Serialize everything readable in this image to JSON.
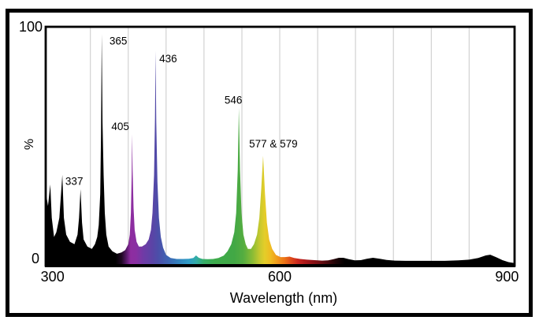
{
  "figure": {
    "xlabel": "Wavelength (nm)",
    "ylabel": "%",
    "y_tick_top": "100",
    "y_tick_bottom": "0"
  },
  "colors": {
    "background": "#ffffff",
    "frame": "#000000",
    "plot_border": "#000000",
    "gridline": "#c9c9c9",
    "text": "#000000"
  },
  "chart_data": {
    "type": "area",
    "title": "",
    "xlabel": "Wavelength (nm)",
    "ylabel": "%",
    "xlim": [
      291,
      910
    ],
    "ylim": [
      0,
      100
    ],
    "x_ticks": [
      300,
      600,
      900
    ],
    "y_ticks": [
      0,
      100
    ],
    "grid": true,
    "gridlines_nm": [
      350,
      400,
      450,
      500,
      550,
      600,
      650,
      700,
      750,
      800,
      850
    ],
    "legend": null,
    "peaks": [
      {
        "nm": 297,
        "pct": 34
      },
      {
        "nm": 313,
        "pct": 38
      },
      {
        "nm": 337,
        "pct": 32,
        "label": "337",
        "label_dx": -8,
        "label_dy": -10
      },
      {
        "nm": 365,
        "pct": 97,
        "label": "365",
        "label_dx": 21,
        "label_dy": 9
      },
      {
        "nm": 405,
        "pct": 55,
        "label": "405",
        "label_dx": -15,
        "label_dy": -10
      },
      {
        "nm": 436,
        "pct": 90,
        "label": "436",
        "label_dx": 16,
        "label_dy": 10
      },
      {
        "nm": 491,
        "pct": 4.3
      },
      {
        "nm": 546,
        "pct": 66,
        "label": "546",
        "label_dx": -7,
        "label_dy": -10
      },
      {
        "nm": 578,
        "pct": 46,
        "label": "577 & 579",
        "label_dx": 13,
        "label_dy": -15
      },
      {
        "nm": 680,
        "pct": 3.3
      },
      {
        "nm": 723,
        "pct": 3.3
      },
      {
        "nm": 878,
        "pct": 4.6
      }
    ],
    "profile": [
      [
        291,
        26
      ],
      [
        292,
        29
      ],
      [
        294,
        25
      ],
      [
        297,
        34
      ],
      [
        299,
        20
      ],
      [
        302,
        12
      ],
      [
        305,
        14
      ],
      [
        309,
        20
      ],
      [
        313,
        38
      ],
      [
        315,
        20
      ],
      [
        318,
        13
      ],
      [
        323,
        10
      ],
      [
        329,
        9
      ],
      [
        333,
        13
      ],
      [
        335,
        20
      ],
      [
        337,
        32
      ],
      [
        339,
        18
      ],
      [
        341,
        11
      ],
      [
        346,
        8
      ],
      [
        352,
        7
      ],
      [
        356,
        9
      ],
      [
        359,
        12
      ],
      [
        361,
        17
      ],
      [
        363,
        30
      ],
      [
        364,
        55
      ],
      [
        365,
        97
      ],
      [
        366,
        60
      ],
      [
        367.5,
        38
      ],
      [
        369,
        22
      ],
      [
        371,
        13
      ],
      [
        374,
        8
      ],
      [
        379,
        6
      ],
      [
        385,
        5
      ],
      [
        391,
        5.5
      ],
      [
        396,
        6.5
      ],
      [
        400,
        9
      ],
      [
        402,
        13
      ],
      [
        403.5,
        22
      ],
      [
        404.5,
        38
      ],
      [
        405,
        55
      ],
      [
        405.8,
        40
      ],
      [
        407,
        24
      ],
      [
        408.5,
        15
      ],
      [
        411,
        10
      ],
      [
        414,
        8
      ],
      [
        418,
        8
      ],
      [
        423,
        9
      ],
      [
        427,
        11
      ],
      [
        430,
        15
      ],
      [
        432,
        22
      ],
      [
        434,
        38
      ],
      [
        435.3,
        62
      ],
      [
        436,
        90
      ],
      [
        437,
        60
      ],
      [
        438.5,
        35
      ],
      [
        440.5,
        20
      ],
      [
        443,
        12
      ],
      [
        446,
        7.5
      ],
      [
        450,
        4.5
      ],
      [
        456,
        3.2
      ],
      [
        464,
        2.8
      ],
      [
        472,
        2.8
      ],
      [
        480,
        2.9
      ],
      [
        486,
        3.2
      ],
      [
        489.5,
        4.3
      ],
      [
        493,
        3.3
      ],
      [
        498,
        2.8
      ],
      [
        505,
        2.7
      ],
      [
        512,
        2.8
      ],
      [
        519,
        3.2
      ],
      [
        526,
        4.2
      ],
      [
        531,
        6
      ],
      [
        536,
        9
      ],
      [
        540,
        14
      ],
      [
        542.5,
        22
      ],
      [
        544.5,
        40
      ],
      [
        546,
        66
      ],
      [
        547.5,
        40
      ],
      [
        549.5,
        22
      ],
      [
        552,
        13
      ],
      [
        555,
        9
      ],
      [
        558,
        7
      ],
      [
        562,
        7
      ],
      [
        566,
        9
      ],
      [
        570,
        13
      ],
      [
        573,
        20
      ],
      [
        575.5,
        32
      ],
      [
        578,
        46
      ],
      [
        580.5,
        30
      ],
      [
        583,
        18
      ],
      [
        586,
        11
      ],
      [
        590,
        7
      ],
      [
        595,
        4.5
      ],
      [
        601,
        3.6
      ],
      [
        607,
        3.6
      ],
      [
        613,
        3.8
      ],
      [
        619,
        3.2
      ],
      [
        627,
        2.8
      ],
      [
        636,
        2.5
      ],
      [
        646,
        2.3
      ],
      [
        656,
        2.1
      ],
      [
        664,
        2.2
      ],
      [
        671,
        2.7
      ],
      [
        678,
        3.3
      ],
      [
        684,
        3.3
      ],
      [
        691,
        2.7
      ],
      [
        699,
        2.2
      ],
      [
        707,
        2.3
      ],
      [
        715,
        2.9
      ],
      [
        723,
        3.3
      ],
      [
        732,
        2.9
      ],
      [
        741,
        2.4
      ],
      [
        752,
        2.1
      ],
      [
        766,
        2
      ],
      [
        782,
        2
      ],
      [
        800,
        2
      ],
      [
        818,
        2
      ],
      [
        836,
        2.2
      ],
      [
        850,
        2.5
      ],
      [
        862,
        3.2
      ],
      [
        872,
        4.3
      ],
      [
        878,
        4.6
      ],
      [
        886,
        3.5
      ],
      [
        894,
        2.3
      ],
      [
        902,
        1.5
      ],
      [
        910,
        1.1
      ]
    ],
    "gradient_stops": [
      [
        291,
        "#000000"
      ],
      [
        383,
        "#000000"
      ],
      [
        391,
        "#1e0822"
      ],
      [
        398,
        "#5c1b6e"
      ],
      [
        403,
        "#8e2da0"
      ],
      [
        410,
        "#8a2fa2"
      ],
      [
        420,
        "#6f3ba6"
      ],
      [
        432,
        "#5a44a6"
      ],
      [
        440,
        "#4b4fa9"
      ],
      [
        452,
        "#3e63b2"
      ],
      [
        466,
        "#3381bd"
      ],
      [
        480,
        "#2f9cc6"
      ],
      [
        490,
        "#32aca6"
      ],
      [
        500,
        "#37ae67"
      ],
      [
        514,
        "#3dab4b"
      ],
      [
        540,
        "#42a845"
      ],
      [
        552,
        "#55ad40"
      ],
      [
        564,
        "#8abc35"
      ],
      [
        574,
        "#c9c92e"
      ],
      [
        580,
        "#e4cd29"
      ],
      [
        588,
        "#efbc22"
      ],
      [
        597,
        "#f0991c"
      ],
      [
        606,
        "#ec7517"
      ],
      [
        615,
        "#dd4a1b"
      ],
      [
        624,
        "#c9261e"
      ],
      [
        636,
        "#a41619"
      ],
      [
        650,
        "#790f14"
      ],
      [
        662,
        "#4c090d"
      ],
      [
        674,
        "#1e0406"
      ],
      [
        686,
        "#000000"
      ],
      [
        910,
        "#000000"
      ]
    ]
  }
}
